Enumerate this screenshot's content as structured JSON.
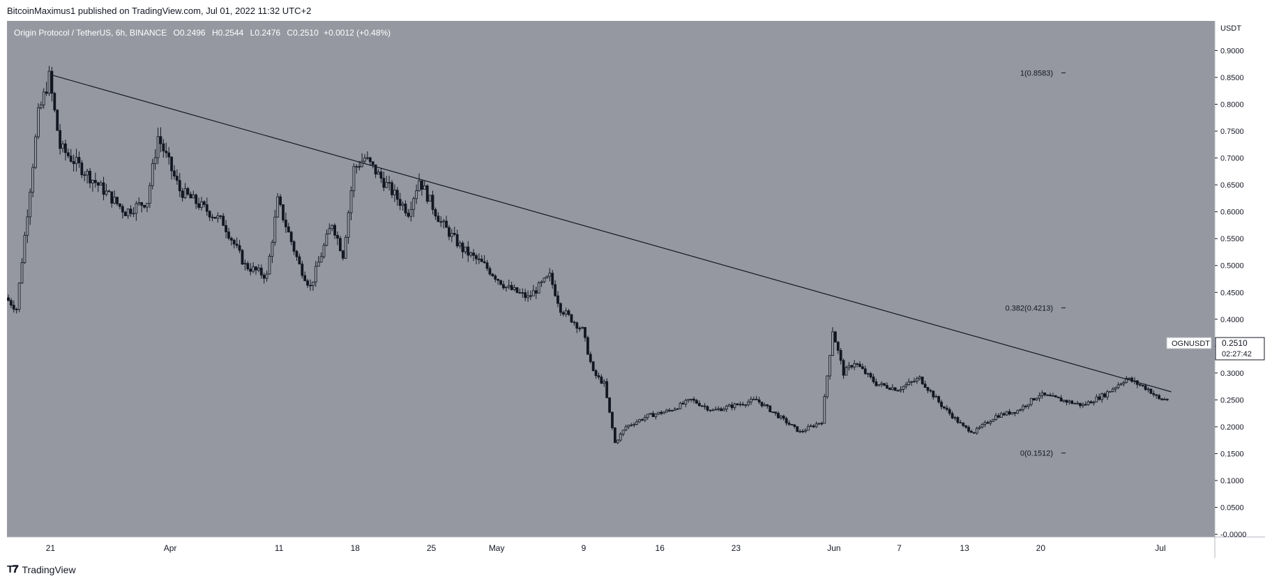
{
  "header": {
    "publisher_line": "BitcoinMaximus1 published on TradingView.com, Jul 01, 2022 11:32 UTC+2"
  },
  "legend": {
    "symbol_title": "Origin Protocol / TetherUS, 6h, BINANCE",
    "open_label": "O",
    "open_value": "0.2496",
    "high_label": "H",
    "high_value": "0.2544",
    "low_label": "L",
    "low_value": "0.2476",
    "close_label": "C",
    "close_value": "0.2510",
    "change": "+0.0012 (+0.48%)"
  },
  "footer": {
    "brand": "TradingView"
  },
  "price_tag": {
    "ticker": "OGNUSDT",
    "price": "0.2510",
    "countdown": "02:27:42"
  },
  "colors": {
    "plot_bg": "#9598a1",
    "candle": "#131722",
    "axis_bg": "#ffffff",
    "axis_text": "#131722",
    "tag_bg": "#ffffff"
  },
  "chart_data": {
    "type": "candlestick",
    "title": "Origin Protocol / TetherUS, 6h, BINANCE",
    "y_axis_unit": "USDT",
    "ylim": [
      0,
      0.95
    ],
    "y_ticks": [
      "0.9000",
      "0.8500",
      "0.8000",
      "0.7500",
      "0.7000",
      "0.6500",
      "0.6000",
      "0.5500",
      "0.5000",
      "0.4500",
      "0.4000",
      "0.3500",
      "0.3000",
      "0.2500",
      "0.2000",
      "0.1500",
      "0.1000",
      "0.0500",
      "-0.0000"
    ],
    "x_ticks": [
      {
        "label": "21",
        "date": "2022-03-21"
      },
      {
        "label": "Apr",
        "date": "2022-04-01"
      },
      {
        "label": "11",
        "date": "2022-04-11"
      },
      {
        "label": "18",
        "date": "2022-04-18"
      },
      {
        "label": "25",
        "date": "2022-04-25"
      },
      {
        "label": "May",
        "date": "2022-05-01"
      },
      {
        "label": "9",
        "date": "2022-05-09"
      },
      {
        "label": "16",
        "date": "2022-05-16"
      },
      {
        "label": "23",
        "date": "2022-05-23"
      },
      {
        "label": "Jun",
        "date": "2022-06-01"
      },
      {
        "label": "7",
        "date": "2022-06-07"
      },
      {
        "label": "13",
        "date": "2022-06-13"
      },
      {
        "label": "20",
        "date": "2022-06-20"
      },
      {
        "label": "Jul",
        "date": "2022-07-01"
      }
    ],
    "x_range": [
      "2022-03-17",
      "2022-07-06"
    ],
    "price_path": [
      {
        "date": "2022-03-17",
        "price": 0.44
      },
      {
        "date": "2022-03-18",
        "price": 0.42
      },
      {
        "date": "2022-03-19",
        "price": 0.6
      },
      {
        "date": "2022-03-20",
        "price": 0.78
      },
      {
        "date": "2022-03-21",
        "price": 0.85
      },
      {
        "date": "2022-03-22",
        "price": 0.72
      },
      {
        "date": "2022-03-24",
        "price": 0.68
      },
      {
        "date": "2022-03-26",
        "price": 0.64
      },
      {
        "date": "2022-03-28",
        "price": 0.6
      },
      {
        "date": "2022-03-30",
        "price": 0.62
      },
      {
        "date": "2022-03-31",
        "price": 0.74
      },
      {
        "date": "2022-04-02",
        "price": 0.64
      },
      {
        "date": "2022-04-04",
        "price": 0.61
      },
      {
        "date": "2022-04-06",
        "price": 0.58
      },
      {
        "date": "2022-04-08",
        "price": 0.5
      },
      {
        "date": "2022-04-10",
        "price": 0.48
      },
      {
        "date": "2022-04-11",
        "price": 0.62
      },
      {
        "date": "2022-04-13",
        "price": 0.5
      },
      {
        "date": "2022-04-14",
        "price": 0.46
      },
      {
        "date": "2022-04-16",
        "price": 0.58
      },
      {
        "date": "2022-04-17",
        "price": 0.52
      },
      {
        "date": "2022-04-18",
        "price": 0.68
      },
      {
        "date": "2022-04-19",
        "price": 0.7
      },
      {
        "date": "2022-04-21",
        "price": 0.65
      },
      {
        "date": "2022-04-23",
        "price": 0.6
      },
      {
        "date": "2022-04-24",
        "price": 0.66
      },
      {
        "date": "2022-04-26",
        "price": 0.58
      },
      {
        "date": "2022-04-28",
        "price": 0.53
      },
      {
        "date": "2022-04-30",
        "price": 0.5
      },
      {
        "date": "2022-05-02",
        "price": 0.46
      },
      {
        "date": "2022-05-04",
        "price": 0.44
      },
      {
        "date": "2022-05-06",
        "price": 0.48
      },
      {
        "date": "2022-05-07",
        "price": 0.42
      },
      {
        "date": "2022-05-09",
        "price": 0.38
      },
      {
        "date": "2022-05-10",
        "price": 0.3
      },
      {
        "date": "2022-05-11",
        "price": 0.28
      },
      {
        "date": "2022-05-12",
        "price": 0.17
      },
      {
        "date": "2022-05-13",
        "price": 0.2
      },
      {
        "date": "2022-05-15",
        "price": 0.22
      },
      {
        "date": "2022-05-17",
        "price": 0.23
      },
      {
        "date": "2022-05-19",
        "price": 0.25
      },
      {
        "date": "2022-05-21",
        "price": 0.23
      },
      {
        "date": "2022-05-23",
        "price": 0.24
      },
      {
        "date": "2022-05-25",
        "price": 0.25
      },
      {
        "date": "2022-05-27",
        "price": 0.22
      },
      {
        "date": "2022-05-29",
        "price": 0.19
      },
      {
        "date": "2022-05-31",
        "price": 0.21
      },
      {
        "date": "2022-06-01",
        "price": 0.38
      },
      {
        "date": "2022-06-02",
        "price": 0.3
      },
      {
        "date": "2022-06-03",
        "price": 0.32
      },
      {
        "date": "2022-06-05",
        "price": 0.28
      },
      {
        "date": "2022-06-07",
        "price": 0.27
      },
      {
        "date": "2022-06-09",
        "price": 0.29
      },
      {
        "date": "2022-06-11",
        "price": 0.24
      },
      {
        "date": "2022-06-13",
        "price": 0.2
      },
      {
        "date": "2022-06-14",
        "price": 0.19
      },
      {
        "date": "2022-06-16",
        "price": 0.22
      },
      {
        "date": "2022-06-18",
        "price": 0.23
      },
      {
        "date": "2022-06-20",
        "price": 0.26
      },
      {
        "date": "2022-06-22",
        "price": 0.25
      },
      {
        "date": "2022-06-24",
        "price": 0.24
      },
      {
        "date": "2022-06-26",
        "price": 0.26
      },
      {
        "date": "2022-06-28",
        "price": 0.29
      },
      {
        "date": "2022-06-30",
        "price": 0.27
      },
      {
        "date": "2022-07-01",
        "price": 0.251
      }
    ],
    "trendline": [
      {
        "date": "2022-03-21",
        "price": 0.855
      },
      {
        "date": "2022-07-02",
        "price": 0.265
      }
    ],
    "fib_levels": [
      {
        "label": "1(0.8583)",
        "value": 0.8583
      },
      {
        "label": "0.382(0.4213)",
        "value": 0.4213
      },
      {
        "label": "0(0.1512)",
        "value": 0.1512
      }
    ],
    "grid": false,
    "legend": "top-left"
  }
}
